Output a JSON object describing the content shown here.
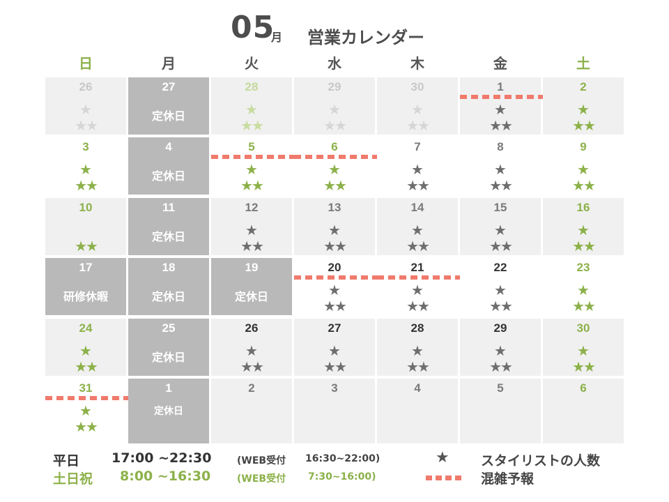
{
  "header": {
    "month": "05",
    "month_suffix": "月",
    "title": "営業カレンダー"
  },
  "weekdays": [
    "日",
    "月",
    "火",
    "水",
    "木",
    "金",
    "土"
  ],
  "closed_label": "定休日",
  "training_label": "研修休暇",
  "colors": {
    "green": "#8cb14a",
    "busy": "#f07a6c",
    "closed_bg": "#b9b9b9",
    "cell_bg": "#f0f0f0"
  },
  "weeks": [
    [
      {
        "day": "26",
        "state": "past",
        "stars": 3
      },
      {
        "day": "27",
        "state": "closed"
      },
      {
        "day": "28",
        "state": "past-holiday",
        "stars": 3
      },
      {
        "day": "29",
        "state": "past",
        "stars": 3
      },
      {
        "day": "30",
        "state": "past",
        "stars": 3
      },
      {
        "day": "1",
        "state": "weekday",
        "stars": 3,
        "busy": true
      },
      {
        "day": "2",
        "state": "weekend",
        "stars": 3
      }
    ],
    [
      {
        "day": "3",
        "state": "weekend-white",
        "stars": 3
      },
      {
        "day": "4",
        "state": "closed"
      },
      {
        "day": "5",
        "state": "holiday-white",
        "stars": 3,
        "busy": true
      },
      {
        "day": "6",
        "state": "holiday-white",
        "stars": 3,
        "busy": true
      },
      {
        "day": "7",
        "state": "weekday-white",
        "stars": 3
      },
      {
        "day": "8",
        "state": "weekday-white",
        "stars": 3
      },
      {
        "day": "9",
        "state": "weekend-white",
        "stars": 3
      }
    ],
    [
      {
        "day": "10",
        "state": "weekend",
        "stars": 2
      },
      {
        "day": "11",
        "state": "closed"
      },
      {
        "day": "12",
        "state": "weekday",
        "stars": 3
      },
      {
        "day": "13",
        "state": "weekday",
        "stars": 3
      },
      {
        "day": "14",
        "state": "weekday",
        "stars": 3
      },
      {
        "day": "15",
        "state": "weekday",
        "stars": 3
      },
      {
        "day": "16",
        "state": "weekend",
        "stars": 3
      }
    ],
    [
      {
        "day": "17",
        "state": "training"
      },
      {
        "day": "18",
        "state": "closed"
      },
      {
        "day": "19",
        "state": "closed"
      },
      {
        "day": "20",
        "state": "weekday-white-dark",
        "stars": 3,
        "busy": true
      },
      {
        "day": "21",
        "state": "weekday-white-dark",
        "stars": 3,
        "busy": true
      },
      {
        "day": "22",
        "state": "weekday-white-dark",
        "stars": 3
      },
      {
        "day": "23",
        "state": "weekend-white",
        "stars": 3
      }
    ],
    [
      {
        "day": "24",
        "state": "weekend",
        "stars": 3
      },
      {
        "day": "25",
        "state": "closed"
      },
      {
        "day": "26",
        "state": "weekday-dark",
        "stars": 3
      },
      {
        "day": "27",
        "state": "weekday-dark",
        "stars": 3
      },
      {
        "day": "28",
        "state": "weekday-dark",
        "stars": 3
      },
      {
        "day": "29",
        "state": "weekday-dark",
        "stars": 3
      },
      {
        "day": "30",
        "state": "weekend",
        "stars": 3
      }
    ],
    [
      {
        "day": "31",
        "state": "weekend-white",
        "stars": 3,
        "busy": true
      },
      {
        "day": "1",
        "state": "closed-small"
      },
      {
        "day": "2",
        "state": "next"
      },
      {
        "day": "3",
        "state": "next"
      },
      {
        "day": "4",
        "state": "next"
      },
      {
        "day": "5",
        "state": "next"
      },
      {
        "day": "6",
        "state": "next-weekend"
      }
    ]
  ],
  "hours": {
    "weekday_label": "平日",
    "weekday_time": "17:00 ~22:30",
    "weekday_web": "(WEB受付",
    "weekday_web_time": "16:30~22:00)",
    "weekend_label": "土日祝",
    "weekend_time": "8:00 ~16:30",
    "weekend_web": "(WEB受付",
    "weekend_web_time": "7:30~16:00)"
  },
  "legend": {
    "star_symbol": "★",
    "star_label": "スタイリストの人数",
    "busy_label": "混雑予報"
  }
}
